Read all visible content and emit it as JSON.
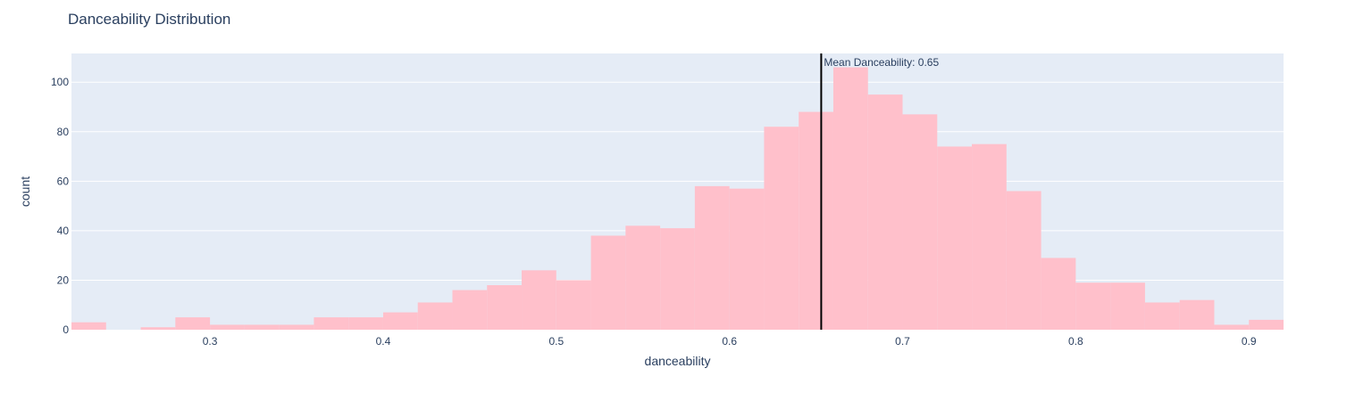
{
  "chart_data": {
    "type": "bar",
    "title": "Danceability Distribution",
    "xlabel": "danceability",
    "ylabel": "count",
    "xlim": [
      0.22,
      0.92
    ],
    "ylim": [
      0,
      111.6
    ],
    "bin_width": 0.02,
    "bin_starts": [
      0.22,
      0.24,
      0.26,
      0.28,
      0.3,
      0.32,
      0.34,
      0.36,
      0.38,
      0.4,
      0.42,
      0.44,
      0.46,
      0.48,
      0.5,
      0.52,
      0.54,
      0.56,
      0.58,
      0.6,
      0.62,
      0.64,
      0.66,
      0.68,
      0.7,
      0.72,
      0.74,
      0.76,
      0.78,
      0.8,
      0.82,
      0.84,
      0.86,
      0.88,
      0.9
    ],
    "values": [
      3,
      0,
      1,
      5,
      2,
      2,
      2,
      5,
      5,
      7,
      11,
      16,
      18,
      24,
      20,
      38,
      42,
      41,
      58,
      57,
      82,
      88,
      106,
      95,
      87,
      74,
      75,
      56,
      29,
      19,
      19,
      11,
      12,
      2,
      4
    ],
    "x_ticks": [
      0.3,
      0.4,
      0.5,
      0.6,
      0.7,
      0.8,
      0.9
    ],
    "x_tick_labels": [
      "0.3",
      "0.4",
      "0.5",
      "0.6",
      "0.7",
      "0.8",
      "0.9"
    ],
    "y_ticks": [
      0,
      20,
      40,
      60,
      80,
      100
    ],
    "y_tick_labels": [
      "0",
      "20",
      "40",
      "60",
      "80",
      "100"
    ],
    "grid": true,
    "bar_color": "#ffc0cb",
    "mean_line": {
      "x": 0.653,
      "label": "Mean Danceability: 0.65",
      "color": "#000000"
    }
  },
  "colors": {
    "plot_bg": "#e5ecf6",
    "grid": "#ffffff",
    "text": "#2a3f5f"
  }
}
